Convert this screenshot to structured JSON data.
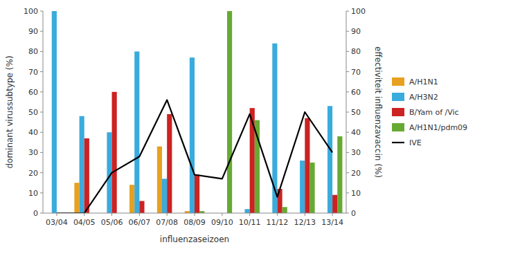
{
  "chart_data": {
    "type": "bar",
    "x_label": "influenzaseizoen",
    "y_label": "dominant virussubtype (%)",
    "y2_label": "effectiviteit influenzavaccin (%)",
    "categories": [
      "03/04",
      "04/05",
      "05/06",
      "06/07",
      "07/08",
      "08/09",
      "09/10",
      "10/11",
      "11/12",
      "12/13",
      "13/14"
    ],
    "series": [
      {
        "name": "A/H1N1",
        "color": "#E8A020",
        "values": [
          0,
          15,
          0,
          14,
          33,
          1,
          0,
          0,
          0,
          0,
          0
        ]
      },
      {
        "name": "A/H3N2",
        "color": "#3AABDD",
        "values": [
          100,
          48,
          40,
          80,
          17,
          77,
          0,
          2,
          84,
          26,
          53
        ]
      },
      {
        "name": "B/Yam of /Vic",
        "color": "#CC2222",
        "values": [
          0,
          37,
          60,
          6,
          49,
          19,
          0,
          52,
          12,
          47,
          9
        ]
      },
      {
        "name": "A/H1N1/pdm09",
        "color": "#66AA33",
        "values": [
          0,
          0,
          0,
          0,
          0,
          1,
          100,
          46,
          3,
          25,
          38
        ]
      },
      {
        "name": "IVE",
        "color": "#000000",
        "type": "line",
        "axis": "y2",
        "values": [
          0,
          0,
          20,
          28,
          56,
          19,
          17,
          49,
          8,
          50,
          30
        ]
      }
    ],
    "ylim": [
      0,
      100
    ],
    "yticks": [
      0,
      10,
      20,
      30,
      40,
      50,
      60,
      70,
      80,
      90,
      100
    ],
    "y2lim": [
      0,
      100
    ],
    "y2ticks": [
      0,
      10,
      20,
      30,
      40,
      50,
      60,
      70,
      80,
      90,
      100
    ],
    "grid": false,
    "legend": "right"
  }
}
